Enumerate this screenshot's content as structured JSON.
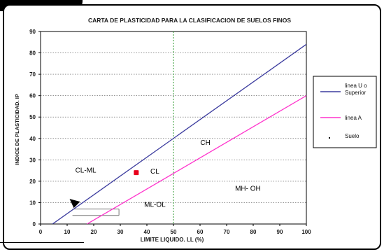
{
  "chart_data": {
    "type": "line",
    "title": "CARTA DE PLASTICIDAD PARA LA CLASIFICACION DE SUELOS FINOS",
    "xlabel": "LIMITE LIQUIDO. LL (%)",
    "ylabel": "INDICE DE PLASTICIDAD. IP",
    "xlim": [
      0,
      100
    ],
    "ylim": [
      0,
      90
    ],
    "xticks": [
      "0",
      "10",
      "20",
      "30",
      "40",
      "50",
      "60",
      "70",
      "80",
      "90",
      "100"
    ],
    "yticks": [
      "0",
      "10",
      "20",
      "30",
      "40",
      "50",
      "60",
      "70",
      "80",
      "90"
    ],
    "grid": true,
    "legend_position": "right",
    "series": [
      {
        "name": "linea U o Superior",
        "color": "#3b3b9e",
        "x": [
          4.5,
          100
        ],
        "y": [
          0,
          84
        ]
      },
      {
        "name": "linea A",
        "color": "#ff33cc",
        "x": [
          17.5,
          100
        ],
        "y": [
          0,
          60
        ]
      },
      {
        "name": "Suelo",
        "color": "#e8001c",
        "x": [
          36
        ],
        "y": [
          24
        ]
      }
    ],
    "vertical_line": {
      "x": 50,
      "color": "#2e9a2e"
    },
    "cl_ml_zone": {
      "x1": 12,
      "x2": 29.5,
      "y1": 4,
      "y2": 7
    },
    "region_labels": [
      {
        "text": "CH",
        "x": 62,
        "y": 37
      },
      {
        "text": "CL",
        "x": 43,
        "y": 23.5
      },
      {
        "text": "CL-ML",
        "x": 17,
        "y": 24
      },
      {
        "text": "MH- OH",
        "x": 78,
        "y": 15.5
      },
      {
        "text": "ML-OL",
        "x": 43,
        "y": 8
      }
    ]
  }
}
